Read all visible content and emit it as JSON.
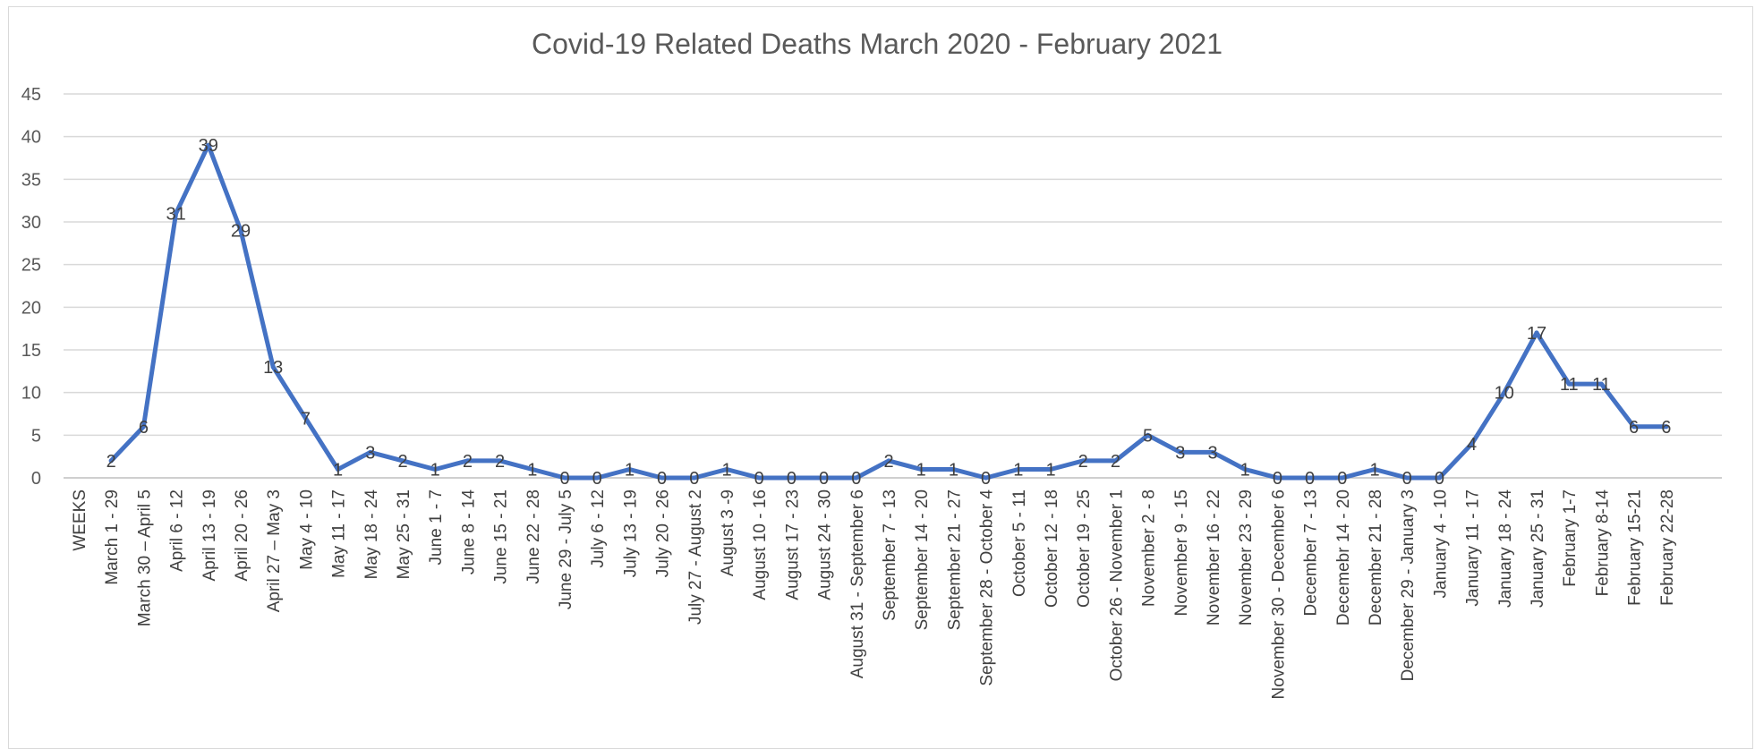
{
  "colors": {
    "series": "#4472C4"
  },
  "chart_data": {
    "type": "line",
    "title": "Covid-19 Related Deaths March 2020 - February 2021",
    "xlabel": "WEEKS",
    "ylabel": "",
    "ylim": [
      0,
      45
    ],
    "yticks": [
      "0",
      "5",
      "10",
      "15",
      "20",
      "25",
      "30",
      "35",
      "40",
      "45"
    ],
    "grid": true,
    "legend": "none",
    "categories": [
      "March 1 - 29",
      "March 30 – April 5",
      "April 6 - 12",
      "April 13 - 19",
      "April 20 - 26",
      "April 27 – May 3",
      "May 4 - 10",
      "May 11 - 17",
      "May 18 - 24",
      "May 25 - 31",
      "June 1 - 7",
      "June 8 - 14",
      "June 15 - 21",
      "June 22 - 28",
      "June 29 - July 5",
      "July 6 - 12",
      "July 13 - 19",
      "July 20 - 26",
      "July 27 - August 2",
      "August 3 -9",
      "August 10 - 16",
      "August 17 - 23",
      "August 24 - 30",
      "August 31 - September 6",
      "September 7 - 13",
      "September 14 - 20",
      "September 21 - 27",
      "September 28 - October 4",
      "October 5 - 11",
      "October 12 - 18",
      "October 19 - 25",
      "October 26 - November 1",
      "November 2 - 8",
      "November 9 - 15",
      "November 16 - 22",
      "November 23 - 29",
      "November 30 - December 6",
      "December 7 - 13",
      "Decemebr 14 - 20",
      "December 21 - 28",
      "December 29 - January 3",
      "January 4 - 10",
      "January 11 - 17",
      "January 18 - 24",
      "January 25 - 31",
      "February 1-7",
      "February 8-14",
      "February 15-21",
      "February 22-28"
    ],
    "series": [
      {
        "values": [
          2,
          6,
          31,
          39,
          29,
          13,
          7,
          1,
          3,
          2,
          1,
          2,
          2,
          1,
          0,
          0,
          1,
          0,
          0,
          1,
          0,
          0,
          0,
          0,
          2,
          1,
          1,
          0,
          1,
          1,
          2,
          2,
          5,
          3,
          3,
          1,
          0,
          0,
          0,
          1,
          0,
          0,
          4,
          10,
          17,
          11,
          11,
          6,
          6
        ]
      }
    ]
  }
}
